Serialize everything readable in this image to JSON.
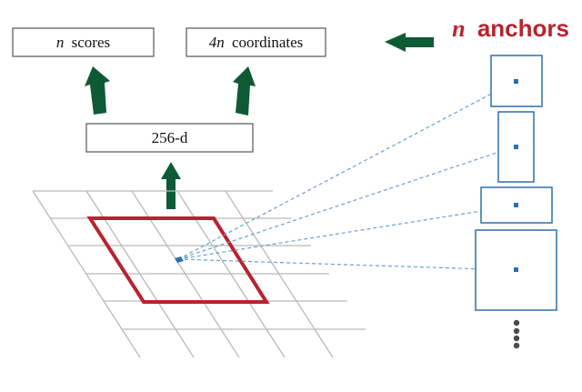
{
  "boxes": {
    "scores": {
      "n": "n",
      "text": "scores"
    },
    "coords": {
      "n": "4n",
      "text": "coordinates"
    },
    "feature": {
      "text": "256-d"
    }
  },
  "anchors_label": {
    "n": "n",
    "text": "anchors"
  },
  "colors": {
    "arrow": "#0f5a36",
    "window": "#b8232f",
    "anchor": "#2c6fae",
    "label": "#b8232f",
    "grid": "#b9b9b9"
  },
  "icons": {
    "up_arrow": "up-arrow-icon",
    "left_arrow": "left-arrow-icon",
    "ellipsis": "vertical-ellipsis-icon"
  }
}
